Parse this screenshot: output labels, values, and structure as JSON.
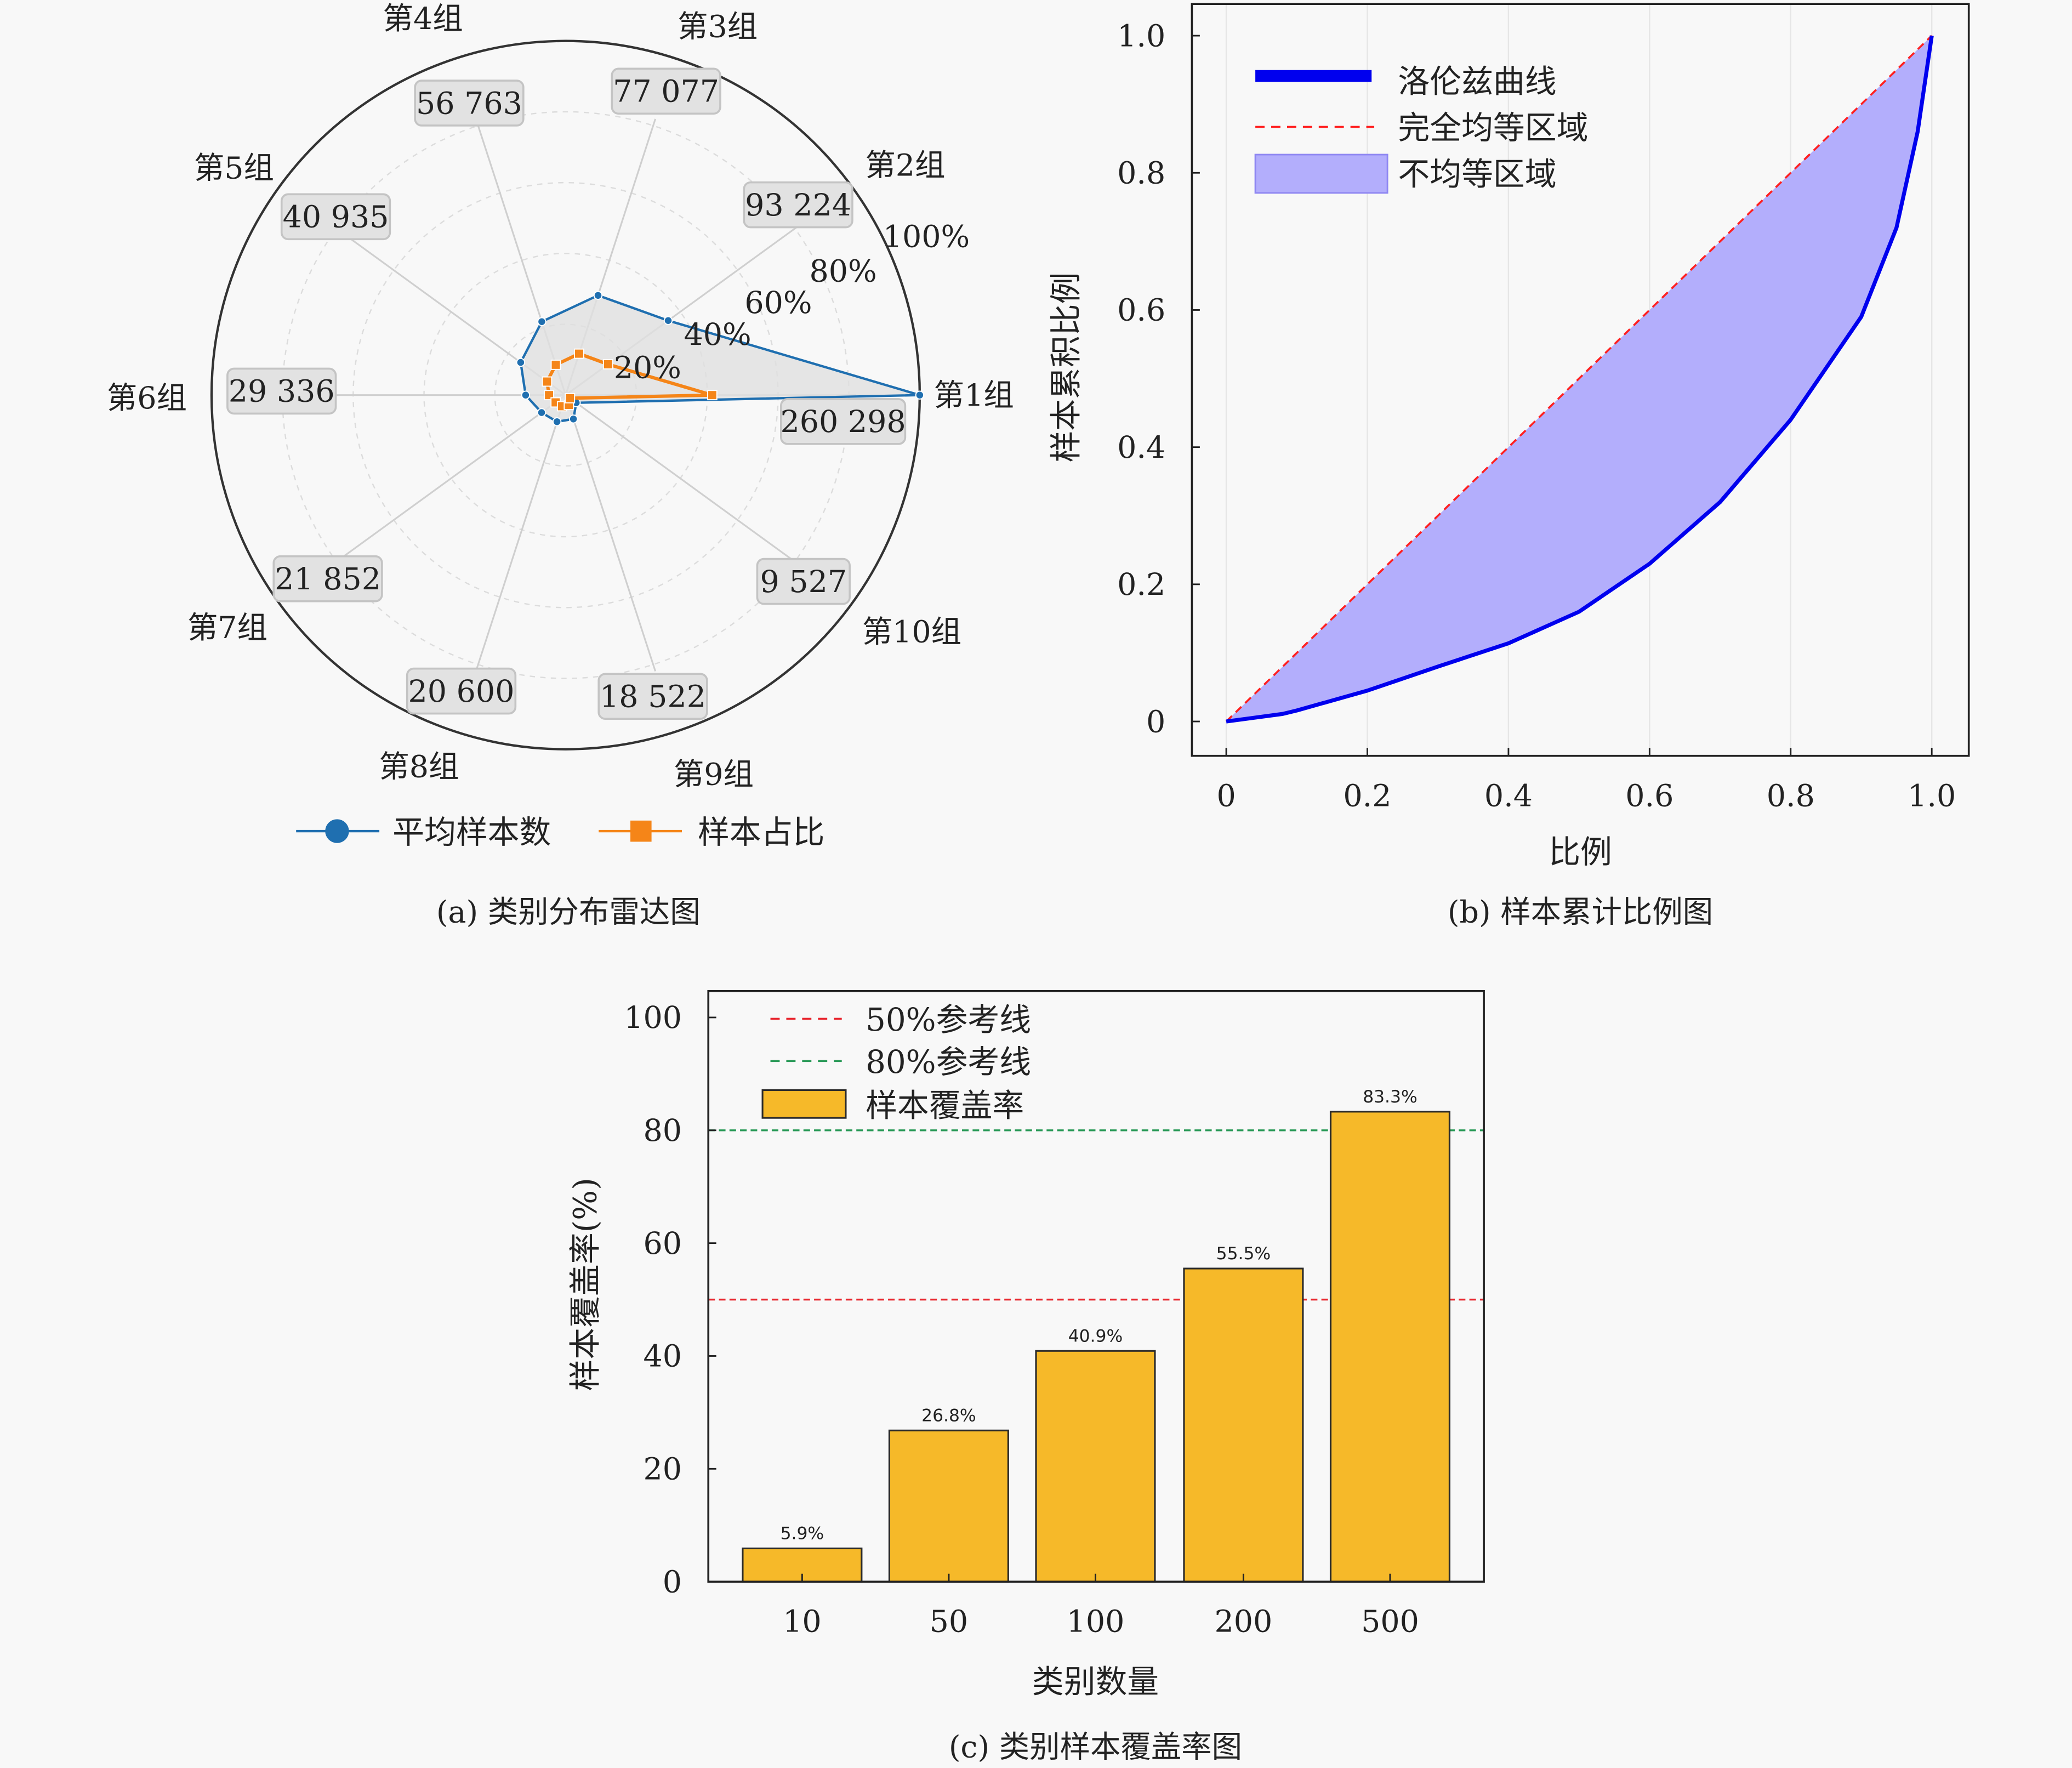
{
  "figure": {
    "caption_a": "(a) 类别分布雷达图",
    "caption_b": "(b) 样本累计比例图",
    "caption_c": "(c) 类别样本覆盖率图"
  },
  "chart_data": [
    {
      "type": "radar",
      "categories": [
        "第1组",
        "第2组",
        "第3组",
        "第4组",
        "第5组",
        "第6组",
        "第7组",
        "第8组",
        "第9组",
        "第10组"
      ],
      "value_labels": [
        "260 298",
        "93 224",
        "77 077",
        "56 763",
        "40 935",
        "29 336",
        "21 852",
        "20 600",
        "18 522",
        "9 527"
      ],
      "radial_ticks": [
        "20%",
        "40%",
        "60%",
        "80%",
        "100%"
      ],
      "radial_range": [
        0,
        1
      ],
      "series": [
        {
          "name": "平均样本数",
          "color": "#1f6fb0",
          "marker": "circle",
          "values": [
            1.0,
            0.358,
            0.296,
            0.218,
            0.157,
            0.113,
            0.084,
            0.079,
            0.071,
            0.037
          ]
        },
        {
          "name": "样本占比",
          "color": "#f58518",
          "marker": "square",
          "values": [
            0.414,
            0.148,
            0.123,
            0.09,
            0.065,
            0.047,
            0.035,
            0.033,
            0.029,
            0.015
          ]
        }
      ],
      "fill_color": "#e0e0e0",
      "legend_position": "bottom"
    },
    {
      "type": "area",
      "xlabel": "比例",
      "ylabel": "样本累积比例",
      "xlim": [
        0,
        1
      ],
      "ylim": [
        0,
        1
      ],
      "xticks": [
        "0",
        "0.2",
        "0.4",
        "0.6",
        "0.8",
        "1.0"
      ],
      "yticks": [
        "0",
        "0.2",
        "0.4",
        "0.6",
        "0.8",
        "1.0"
      ],
      "grid": "vertical",
      "legend_position": "top-left",
      "series": [
        {
          "name": "洛伦兹曲线",
          "color": "#0000ee",
          "style": "solid",
          "x": [
            0,
            0.08,
            0.1,
            0.2,
            0.3,
            0.4,
            0.5,
            0.6,
            0.7,
            0.8,
            0.9,
            0.95,
            0.98,
            1.0
          ],
          "y": [
            0,
            0.011,
            0.016,
            0.045,
            0.08,
            0.114,
            0.16,
            0.23,
            0.32,
            0.44,
            0.59,
            0.72,
            0.86,
            1.0
          ]
        },
        {
          "name": "完全均等区域",
          "color": "#ff2020",
          "style": "dashed",
          "x": [
            0,
            1
          ],
          "y": [
            0,
            1
          ]
        },
        {
          "name": "不均等区域",
          "color": "#b3aefc",
          "style": "fill"
        }
      ]
    },
    {
      "type": "bar",
      "xlabel": "类别数量",
      "ylabel": "样本覆盖率(%)",
      "categories": [
        "10",
        "50",
        "100",
        "200",
        "500"
      ],
      "values": [
        5.9,
        26.8,
        40.9,
        55.5,
        83.3
      ],
      "data_labels": [
        "5.9%",
        "26.8%",
        "40.9%",
        "55.5%",
        "83.3%"
      ],
      "ylim": [
        0,
        100
      ],
      "yticks": [
        "0",
        "20",
        "40",
        "60",
        "80",
        "100"
      ],
      "legend_position": "top-left",
      "reference_lines": [
        {
          "name": "50%参考线",
          "value": 50,
          "color": "#e8262e"
        },
        {
          "name": "80%参考线",
          "value": 80,
          "color": "#2a9a58"
        }
      ],
      "series": [
        {
          "name": "样本覆盖率",
          "color": "#f6b929"
        }
      ]
    }
  ]
}
